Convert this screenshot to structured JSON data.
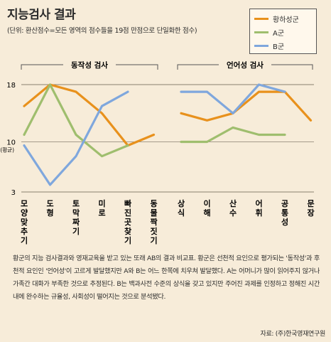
{
  "title": "지능검사 결과",
  "subtitle": "(단위: 환산점수=모든 영역의 점수들을 19점 만점으로 단일화한 점수)",
  "legend": [
    {
      "name": "황하성군",
      "color": "#e8911c"
    },
    {
      "name": "A군",
      "color": "#9fbe6e"
    },
    {
      "name": "B군",
      "color": "#7fa7dd"
    }
  ],
  "description": "황군의 지능 검사결과와 영재교육을 받고 있는 또래 AB의 결과 비교표. 황군은 선천적 요인으로 평가되는 '동작성'과 후천적 요인인 '언어성'이 고르게 발달했지만 A와 B는 어느 한쪽에 치우쳐 발달했다. A는 어머니가 많이 읽어주지 않거나 가족간 대화가 부족한 것으로 추정된다. B는 백과사전 수준의 상식을 갖고 있지만 주어진 과제를 인정하고 정해진 시간 내에 완수하는 규율성, 사회성이 떨어지는 것으로 분석됐다.",
  "source": "자료: (주)한국영재연구원",
  "chart_data": [
    {
      "type": "line",
      "title": "동작성 검사",
      "categories": [
        "모양맞추기",
        "도형",
        "토막짜기",
        "미로",
        "빠진곳찾기",
        "동물짝짓기"
      ],
      "ylim": [
        3,
        18
      ],
      "yticks": [
        {
          "value": 18,
          "label": "18"
        },
        {
          "value": 10,
          "label": "10"
        },
        {
          "value": 3,
          "label": "3"
        }
      ],
      "ytick_note": {
        "value": 10,
        "label": "(평균)"
      },
      "series": [
        {
          "name": "황하성군",
          "values": [
            15,
            18,
            17,
            14,
            9.5,
            11
          ]
        },
        {
          "name": "A군",
          "values": [
            11,
            18,
            11,
            8,
            9.5,
            null
          ]
        },
        {
          "name": "B군",
          "values": [
            9.5,
            4,
            8,
            15,
            17,
            null
          ]
        }
      ]
    },
    {
      "type": "line",
      "title": "언어성 검사",
      "categories": [
        "상식",
        "이해",
        "산수",
        "어휘",
        "공통성",
        "문장"
      ],
      "ylim": [
        3,
        18
      ],
      "series": [
        {
          "name": "황하성군",
          "values": [
            14,
            13,
            14,
            17,
            17,
            13
          ]
        },
        {
          "name": "A군",
          "values": [
            10,
            10,
            12,
            11,
            11,
            null
          ]
        },
        {
          "name": "B군",
          "values": [
            17,
            17,
            14,
            18,
            17,
            null
          ]
        }
      ]
    }
  ]
}
